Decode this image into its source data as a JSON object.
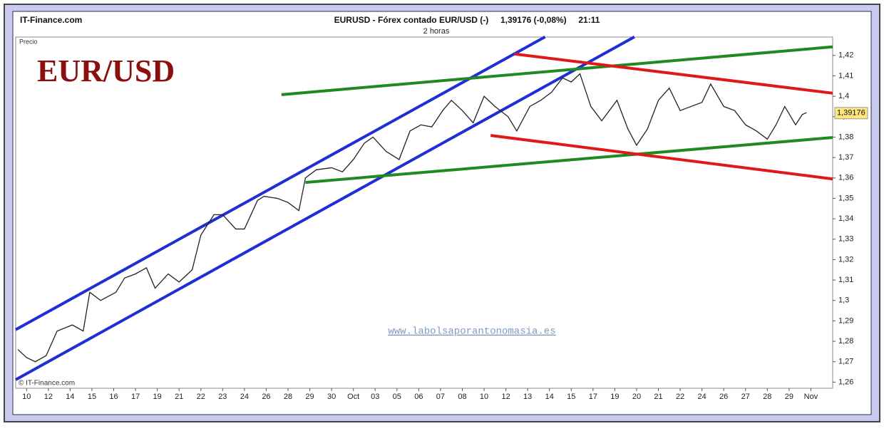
{
  "chart_data": {
    "type": "line",
    "site": "IT-Finance.com",
    "title": "EURUSD - Fórex contado EUR/USD (-)     1,39176 (-0,08%)     21:11",
    "subtitle": "2 horas",
    "y_label": "Precio",
    "big_label": "EUR/USD",
    "watermark": "www.labolsaporantonomasia.es",
    "copyright": "© IT-Finance.com",
    "last_price": {
      "value": 1.39176,
      "label": "1,39176"
    },
    "xlim": [
      -0.5,
      37
    ],
    "ylim": [
      1.257,
      1.429
    ],
    "xticks": [
      {
        "value": 0,
        "label": "10"
      },
      {
        "value": 1,
        "label": "12"
      },
      {
        "value": 2,
        "label": "14"
      },
      {
        "value": 3,
        "label": "15"
      },
      {
        "value": 4,
        "label": "16"
      },
      {
        "value": 5,
        "label": "17"
      },
      {
        "value": 6,
        "label": "19"
      },
      {
        "value": 7,
        "label": "21"
      },
      {
        "value": 8,
        "label": "22"
      },
      {
        "value": 9,
        "label": "23"
      },
      {
        "value": 10,
        "label": "24"
      },
      {
        "value": 11,
        "label": "26"
      },
      {
        "value": 12,
        "label": "28"
      },
      {
        "value": 13,
        "label": "29"
      },
      {
        "value": 14,
        "label": "30"
      },
      {
        "value": 15,
        "label": "Oct"
      },
      {
        "value": 16,
        "label": "03"
      },
      {
        "value": 17,
        "label": "05"
      },
      {
        "value": 18,
        "label": "06"
      },
      {
        "value": 19,
        "label": "07"
      },
      {
        "value": 20,
        "label": "08"
      },
      {
        "value": 21,
        "label": "10"
      },
      {
        "value": 22,
        "label": "12"
      },
      {
        "value": 23,
        "label": "13"
      },
      {
        "value": 24,
        "label": "14"
      },
      {
        "value": 25,
        "label": "15"
      },
      {
        "value": 26,
        "label": "17"
      },
      {
        "value": 27,
        "label": "19"
      },
      {
        "value": 28,
        "label": "20"
      },
      {
        "value": 29,
        "label": "21"
      },
      {
        "value": 30,
        "label": "22"
      },
      {
        "value": 31,
        "label": "24"
      },
      {
        "value": 32,
        "label": "26"
      },
      {
        "value": 33,
        "label": "27"
      },
      {
        "value": 34,
        "label": "28"
      },
      {
        "value": 35,
        "label": "29"
      },
      {
        "value": 36,
        "label": "Nov"
      }
    ],
    "yticks": [
      {
        "value": 1.26,
        "label": "1,26"
      },
      {
        "value": 1.27,
        "label": "1,27"
      },
      {
        "value": 1.28,
        "label": "1,28"
      },
      {
        "value": 1.29,
        "label": "1,29"
      },
      {
        "value": 1.3,
        "label": "1,3"
      },
      {
        "value": 1.31,
        "label": "1,31"
      },
      {
        "value": 1.32,
        "label": "1,32"
      },
      {
        "value": 1.33,
        "label": "1,33"
      },
      {
        "value": 1.34,
        "label": "1,34"
      },
      {
        "value": 1.35,
        "label": "1,35"
      },
      {
        "value": 1.36,
        "label": "1,36"
      },
      {
        "value": 1.37,
        "label": "1,37"
      },
      {
        "value": 1.38,
        "label": "1,38"
      },
      {
        "value": 1.39,
        "label": "1,39"
      },
      {
        "value": 1.4,
        "label": "1,4"
      },
      {
        "value": 1.41,
        "label": "1,41"
      },
      {
        "value": 1.42,
        "label": "1,42"
      }
    ],
    "series": [
      {
        "color": "#222222",
        "x": [
          -0.4,
          0,
          0.4,
          0.9,
          1.4,
          2.1,
          2.6,
          2.9,
          3.4,
          4.1,
          4.5,
          5.0,
          5.5,
          5.9,
          6.5,
          7.0,
          7.6,
          8.0,
          8.6,
          9.0,
          9.6,
          10.0,
          10.6,
          10.9,
          11.5,
          12.0,
          12.5,
          12.8,
          13.3,
          14.0,
          14.5,
          15.0,
          15.5,
          15.9,
          16.5,
          17.1,
          17.6,
          18.1,
          18.6,
          19.1,
          19.5,
          20.0,
          20.5,
          21.0,
          21.5,
          22.1,
          22.5,
          23.1,
          23.6,
          24.1,
          24.6,
          25.0,
          25.4,
          25.9,
          26.4,
          27.1,
          27.6,
          28.0,
          28.5,
          29.0,
          29.5,
          30.0,
          30.5,
          31.0,
          31.4,
          32.0,
          32.5,
          33.0,
          33.5,
          34.0,
          34.4,
          34.8,
          35.3,
          35.6,
          35.8
        ],
        "values": [
          1.276,
          1.272,
          1.27,
          1.273,
          1.285,
          1.288,
          1.285,
          1.304,
          1.3,
          1.304,
          1.311,
          1.313,
          1.316,
          1.306,
          1.313,
          1.309,
          1.315,
          1.332,
          1.342,
          1.342,
          1.335,
          1.335,
          1.349,
          1.351,
          1.35,
          1.348,
          1.344,
          1.36,
          1.364,
          1.365,
          1.363,
          1.369,
          1.377,
          1.38,
          1.373,
          1.369,
          1.383,
          1.386,
          1.385,
          1.393,
          1.398,
          1.393,
          1.387,
          1.4,
          1.395,
          1.39,
          1.383,
          1.395,
          1.398,
          1.402,
          1.409,
          1.407,
          1.411,
          1.395,
          1.388,
          1.398,
          1.384,
          1.376,
          1.384,
          1.398,
          1.404,
          1.393,
          1.395,
          1.397,
          1.406,
          1.395,
          1.393,
          1.386,
          1.383,
          1.379,
          1.386,
          1.395,
          1.386,
          1.391,
          1.392
        ]
      }
    ],
    "trendlines": [
      {
        "color": "#1f2fd6",
        "x": [
          -0.5,
          23.8
        ],
        "values": [
          1.2857,
          1.4291
        ]
      },
      {
        "color": "#1f2fd6",
        "x": [
          -0.5,
          27.9
        ],
        "values": [
          1.2612,
          1.4291
        ]
      },
      {
        "color": "#1f8a1f",
        "x": [
          11.7,
          37
        ],
        "values": [
          1.4008,
          1.4242
        ]
      },
      {
        "color": "#1f8a1f",
        "x": [
          12.8,
          37
        ],
        "values": [
          1.3578,
          1.3798
        ]
      },
      {
        "color": "#e01818",
        "x": [
          22.4,
          37
        ],
        "values": [
          1.4207,
          1.4015
        ]
      },
      {
        "color": "#e01818",
        "x": [
          21.3,
          37
        ],
        "values": [
          1.3808,
          1.3595
        ]
      }
    ]
  }
}
